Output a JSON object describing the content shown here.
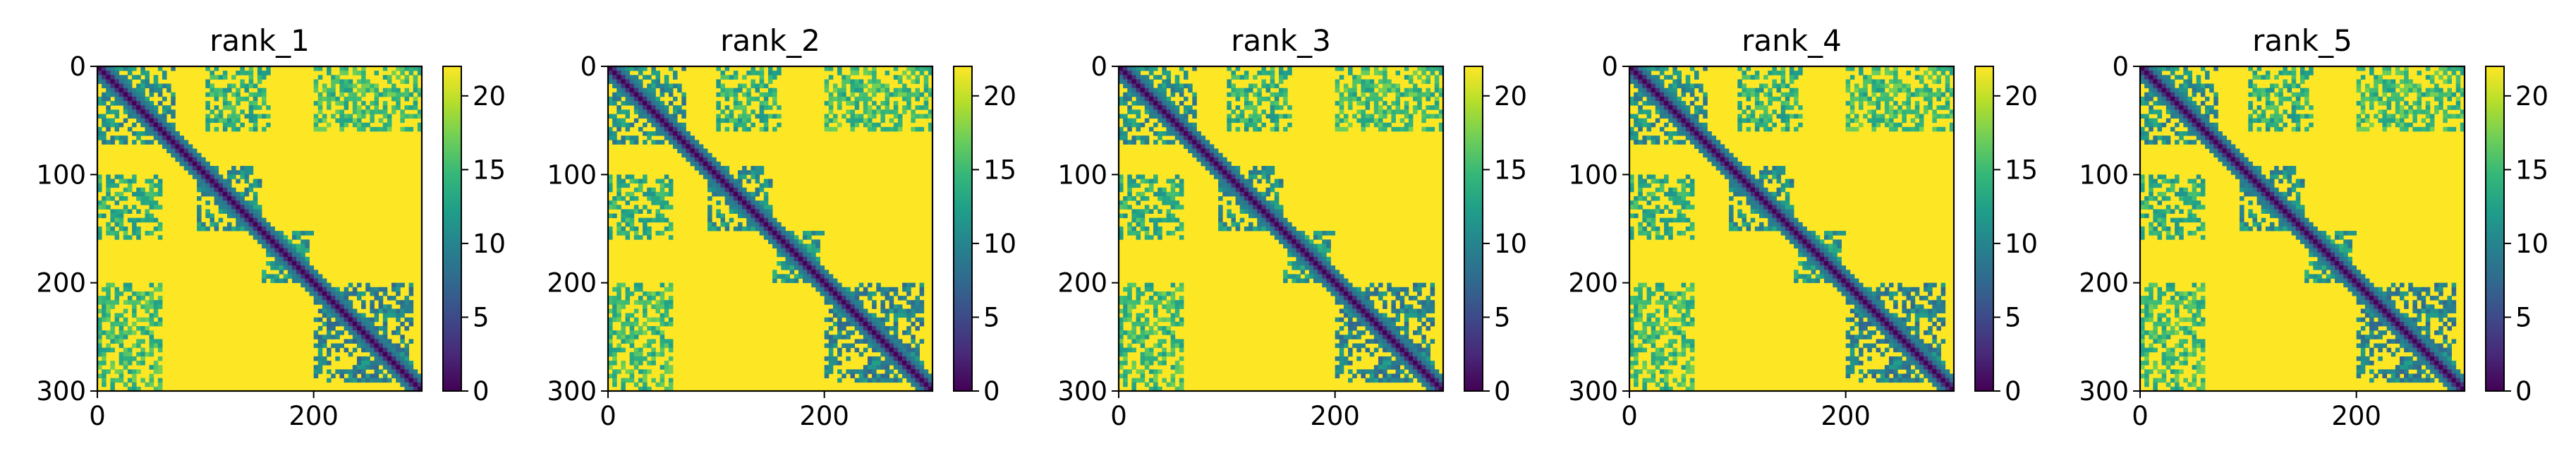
{
  "figure": {
    "panel_count": 5,
    "colormap": "viridis",
    "colormap_stops": [
      "#440154",
      "#482878",
      "#3e4989",
      "#31688e",
      "#26828e",
      "#1f9e89",
      "#35b779",
      "#6ece58",
      "#b5de2b",
      "#fde725"
    ]
  },
  "chart_data": [
    {
      "type": "heatmap",
      "title": "rank_1",
      "x_ticks": [
        "0",
        "200"
      ],
      "y_ticks": [
        "0",
        "100",
        "200",
        "300"
      ],
      "xlim": [
        0,
        300
      ],
      "ylim": [
        300,
        0
      ],
      "colorbar": {
        "range": [
          0,
          22
        ],
        "ticks": [
          "0",
          "5",
          "10",
          "15",
          "20"
        ]
      },
      "matrix_size": 300,
      "diagonal_value": 0,
      "background_value": 22,
      "contact_blocks": [
        {
          "rows": [
            0,
            70
          ],
          "cols": [
            0,
            70
          ],
          "value": 11
        },
        {
          "rows": [
            90,
            150
          ],
          "cols": [
            90,
            150
          ],
          "value": 11
        },
        {
          "rows": [
            200,
            290
          ],
          "cols": [
            200,
            290
          ],
          "value": 10
        },
        {
          "rows": [
            0,
            60
          ],
          "cols": [
            100,
            160
          ],
          "value": 14
        },
        {
          "rows": [
            150,
            200
          ],
          "cols": [
            150,
            200
          ],
          "value": 12
        },
        {
          "rows": [
            200,
            300
          ],
          "cols": [
            0,
            60
          ],
          "value": 15
        },
        {
          "rows": [
            0,
            60
          ],
          "cols": [
            200,
            300
          ],
          "value": 16
        }
      ]
    },
    {
      "type": "heatmap",
      "title": "rank_2",
      "x_ticks": [
        "0",
        "200"
      ],
      "y_ticks": [
        "0",
        "100",
        "200",
        "300"
      ],
      "xlim": [
        0,
        300
      ],
      "ylim": [
        300,
        0
      ],
      "colorbar": {
        "range": [
          0,
          22
        ],
        "ticks": [
          "0",
          "5",
          "10",
          "15",
          "20"
        ]
      },
      "matrix_size": 300,
      "diagonal_value": 0,
      "background_value": 22,
      "contact_blocks": [
        {
          "rows": [
            0,
            70
          ],
          "cols": [
            0,
            70
          ],
          "value": 11
        },
        {
          "rows": [
            90,
            150
          ],
          "cols": [
            90,
            150
          ],
          "value": 11
        },
        {
          "rows": [
            200,
            290
          ],
          "cols": [
            200,
            290
          ],
          "value": 10
        },
        {
          "rows": [
            0,
            60
          ],
          "cols": [
            100,
            160
          ],
          "value": 14
        },
        {
          "rows": [
            150,
            200
          ],
          "cols": [
            150,
            200
          ],
          "value": 12
        },
        {
          "rows": [
            200,
            300
          ],
          "cols": [
            0,
            60
          ],
          "value": 15
        },
        {
          "rows": [
            0,
            60
          ],
          "cols": [
            200,
            300
          ],
          "value": 16
        }
      ]
    },
    {
      "type": "heatmap",
      "title": "rank_3",
      "x_ticks": [
        "0",
        "200"
      ],
      "y_ticks": [
        "0",
        "100",
        "200",
        "300"
      ],
      "xlim": [
        0,
        300
      ],
      "ylim": [
        300,
        0
      ],
      "colorbar": {
        "range": [
          0,
          22
        ],
        "ticks": [
          "0",
          "5",
          "10",
          "15",
          "20"
        ]
      },
      "matrix_size": 300,
      "diagonal_value": 0,
      "background_value": 22,
      "contact_blocks": [
        {
          "rows": [
            0,
            70
          ],
          "cols": [
            0,
            70
          ],
          "value": 11
        },
        {
          "rows": [
            90,
            150
          ],
          "cols": [
            90,
            150
          ],
          "value": 11
        },
        {
          "rows": [
            200,
            290
          ],
          "cols": [
            200,
            290
          ],
          "value": 10
        },
        {
          "rows": [
            0,
            60
          ],
          "cols": [
            100,
            160
          ],
          "value": 14
        },
        {
          "rows": [
            150,
            200
          ],
          "cols": [
            150,
            200
          ],
          "value": 12
        },
        {
          "rows": [
            200,
            300
          ],
          "cols": [
            0,
            60
          ],
          "value": 15
        },
        {
          "rows": [
            0,
            60
          ],
          "cols": [
            200,
            300
          ],
          "value": 16
        }
      ]
    },
    {
      "type": "heatmap",
      "title": "rank_4",
      "x_ticks": [
        "0",
        "200"
      ],
      "y_ticks": [
        "0",
        "100",
        "200",
        "300"
      ],
      "xlim": [
        0,
        300
      ],
      "ylim": [
        300,
        0
      ],
      "colorbar": {
        "range": [
          0,
          22
        ],
        "ticks": [
          "0",
          "5",
          "10",
          "15",
          "20"
        ]
      },
      "matrix_size": 300,
      "diagonal_value": 0,
      "background_value": 22,
      "contact_blocks": [
        {
          "rows": [
            0,
            70
          ],
          "cols": [
            0,
            70
          ],
          "value": 11
        },
        {
          "rows": [
            90,
            150
          ],
          "cols": [
            90,
            150
          ],
          "value": 11
        },
        {
          "rows": [
            200,
            290
          ],
          "cols": [
            200,
            290
          ],
          "value": 10
        },
        {
          "rows": [
            0,
            60
          ],
          "cols": [
            100,
            160
          ],
          "value": 14
        },
        {
          "rows": [
            150,
            200
          ],
          "cols": [
            150,
            200
          ],
          "value": 12
        },
        {
          "rows": [
            200,
            300
          ],
          "cols": [
            0,
            60
          ],
          "value": 15
        },
        {
          "rows": [
            0,
            60
          ],
          "cols": [
            200,
            300
          ],
          "value": 16
        }
      ]
    },
    {
      "type": "heatmap",
      "title": "rank_5",
      "x_ticks": [
        "0",
        "200"
      ],
      "y_ticks": [
        "0",
        "100",
        "200",
        "300"
      ],
      "xlim": [
        0,
        300
      ],
      "ylim": [
        300,
        0
      ],
      "colorbar": {
        "range": [
          0,
          22
        ],
        "ticks": [
          "0",
          "5",
          "10",
          "15",
          "20"
        ]
      },
      "matrix_size": 300,
      "diagonal_value": 0,
      "background_value": 22,
      "contact_blocks": [
        {
          "rows": [
            0,
            70
          ],
          "cols": [
            0,
            70
          ],
          "value": 11
        },
        {
          "rows": [
            90,
            150
          ],
          "cols": [
            90,
            150
          ],
          "value": 11
        },
        {
          "rows": [
            200,
            290
          ],
          "cols": [
            200,
            290
          ],
          "value": 10
        },
        {
          "rows": [
            0,
            60
          ],
          "cols": [
            100,
            160
          ],
          "value": 14
        },
        {
          "rows": [
            150,
            200
          ],
          "cols": [
            150,
            200
          ],
          "value": 12
        },
        {
          "rows": [
            200,
            300
          ],
          "cols": [
            0,
            60
          ],
          "value": 15
        },
        {
          "rows": [
            0,
            60
          ],
          "cols": [
            200,
            300
          ],
          "value": 16
        }
      ]
    }
  ]
}
